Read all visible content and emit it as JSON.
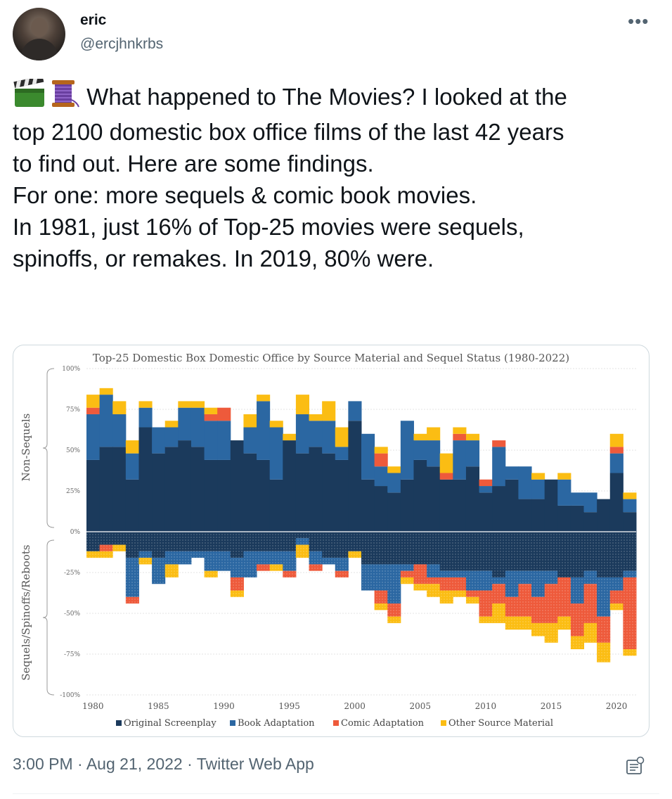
{
  "tweet": {
    "author_name": "eric",
    "author_handle": "@ercjhnkrbs",
    "text_lines": [
      "What happened to The Movies? I looked at the",
      "top 2100 domestic box office films of the last 42 years",
      "to find out. Here are some findings.",
      "",
      "For one: more sequels & comic book movies.",
      "",
      "In 1981, just 16% of Top-25 movies were sequels,",
      "spinoffs, or remakes. In 2019, 80% were."
    ],
    "time": "3:00 PM",
    "date": "Aug 21, 2022",
    "source": "Twitter Web App",
    "separator": "·"
  },
  "icons": {
    "emoji": [
      "clapper-board-icon",
      "thread-spool-icon"
    ],
    "more": "more-options-icon",
    "analytics": "view-analytics-icon"
  },
  "chart_data": {
    "type": "bar",
    "title": "Top-25 Domestic Box Domestic Office by Source Material and Sequel Status (1980-2022)",
    "group_labels": {
      "upper": "Non-Sequels",
      "lower": "Sequels/Spinoffs/Reboots"
    },
    "y_ticks": [
      "100%",
      "75%",
      "50%",
      "25%",
      "0%",
      "-25%",
      "-50%",
      "-75%",
      "-100%"
    ],
    "ylim": [
      -100,
      100
    ],
    "x_ticks": [
      "1980",
      "1985",
      "1990",
      "1995",
      "2000",
      "2005",
      "2010",
      "2015",
      "2020"
    ],
    "years": [
      1980,
      1981,
      1982,
      1983,
      1984,
      1985,
      1986,
      1987,
      1988,
      1989,
      1990,
      1991,
      1992,
      1993,
      1994,
      1995,
      1996,
      1997,
      1998,
      1999,
      2000,
      2001,
      2002,
      2003,
      2004,
      2005,
      2006,
      2007,
      2008,
      2009,
      2010,
      2011,
      2012,
      2013,
      2014,
      2015,
      2016,
      2017,
      2018,
      2019,
      2020,
      2021
    ],
    "legend": [
      "Original Screenplay",
      "Book Adaptation",
      "Comic Adaptation",
      "Other Source Material"
    ],
    "colors": {
      "original": "#1b3a5c",
      "book": "#2b67a2",
      "comic": "#ee5a3b",
      "other": "#fbbd13"
    },
    "non_sequels": {
      "original": [
        44,
        52,
        52,
        32,
        64,
        48,
        52,
        56,
        52,
        44,
        44,
        56,
        48,
        44,
        32,
        56,
        48,
        52,
        48,
        44,
        68,
        32,
        28,
        24,
        32,
        44,
        40,
        32,
        32,
        40,
        24,
        28,
        32,
        20,
        20,
        32,
        16,
        16,
        12,
        20,
        36,
        12
      ],
      "book": [
        28,
        32,
        20,
        16,
        12,
        16,
        12,
        20,
        24,
        24,
        24,
        0,
        16,
        36,
        32,
        0,
        24,
        16,
        20,
        8,
        12,
        28,
        12,
        12,
        36,
        12,
        16,
        0,
        24,
        16,
        4,
        24,
        8,
        20,
        12,
        0,
        16,
        8,
        12,
        0,
        12,
        8
      ],
      "comic": [
        4,
        0,
        0,
        0,
        0,
        0,
        0,
        0,
        0,
        4,
        8,
        0,
        0,
        0,
        0,
        0,
        0,
        0,
        0,
        0,
        0,
        0,
        8,
        0,
        0,
        0,
        0,
        4,
        4,
        0,
        4,
        4,
        0,
        0,
        0,
        0,
        0,
        0,
        0,
        0,
        4,
        0
      ],
      "other": [
        8,
        4,
        8,
        8,
        4,
        0,
        4,
        4,
        4,
        4,
        0,
        0,
        8,
        4,
        4,
        4,
        12,
        4,
        12,
        12,
        0,
        0,
        4,
        4,
        0,
        4,
        8,
        12,
        4,
        4,
        0,
        0,
        0,
        0,
        4,
        0,
        4,
        0,
        0,
        0,
        8,
        4
      ]
    },
    "sequels": {
      "original": [
        12,
        8,
        8,
        16,
        12,
        16,
        12,
        12,
        12,
        12,
        12,
        16,
        12,
        12,
        12,
        12,
        4,
        12,
        16,
        16,
        12,
        20,
        20,
        20,
        20,
        20,
        20,
        24,
        24,
        24,
        24,
        28,
        24,
        24,
        24,
        24,
        28,
        28,
        24,
        28,
        28,
        24
      ],
      "book": [
        0,
        0,
        0,
        24,
        4,
        16,
        8,
        8,
        4,
        12,
        12,
        12,
        16,
        8,
        8,
        12,
        4,
        8,
        4,
        8,
        0,
        16,
        16,
        24,
        4,
        0,
        8,
        4,
        4,
        12,
        12,
        4,
        16,
        8,
        16,
        8,
        0,
        16,
        8,
        24,
        8,
        4
      ],
      "comic": [
        0,
        4,
        0,
        4,
        0,
        0,
        0,
        0,
        0,
        0,
        0,
        8,
        0,
        4,
        0,
        4,
        0,
        4,
        0,
        4,
        0,
        0,
        8,
        8,
        4,
        12,
        4,
        8,
        8,
        4,
        16,
        12,
        12,
        20,
        16,
        24,
        24,
        20,
        24,
        16,
        8,
        44
      ],
      "other": [
        4,
        4,
        4,
        0,
        4,
        0,
        8,
        0,
        0,
        4,
        0,
        4,
        0,
        0,
        4,
        0,
        8,
        0,
        0,
        0,
        4,
        0,
        4,
        4,
        4,
        4,
        8,
        8,
        4,
        4,
        4,
        12,
        8,
        8,
        8,
        12,
        8,
        8,
        12,
        12,
        4,
        4
      ]
    }
  }
}
